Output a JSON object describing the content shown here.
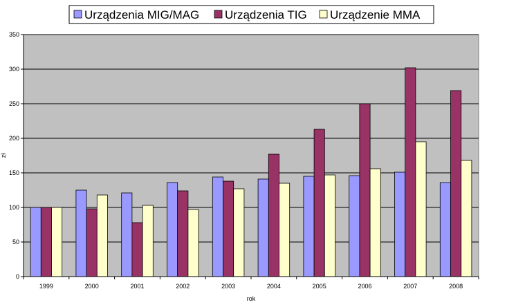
{
  "chart_data": {
    "type": "bar",
    "title": "",
    "xlabel": "rok",
    "ylabel": "zł",
    "ylim": [
      0,
      350
    ],
    "yticks": [
      0,
      50,
      100,
      150,
      200,
      250,
      300,
      350
    ],
    "grid": true,
    "legend_position": "top",
    "categories": [
      "1999",
      "2000",
      "2001",
      "2002",
      "2003",
      "2004",
      "2005",
      "2006",
      "2007",
      "2008"
    ],
    "series": [
      {
        "name": "Urządzenia MIG/MAG",
        "color": "#9999ff",
        "values": [
          100,
          125,
          121,
          136,
          144,
          141,
          145,
          146,
          151,
          136
        ]
      },
      {
        "name": "Urządzenia TIG",
        "color": "#993366",
        "values": [
          100,
          98,
          78,
          124,
          138,
          177,
          213,
          250,
          302,
          269
        ]
      },
      {
        "name": "Urządzenie MMA",
        "color": "#ffffcc",
        "values": [
          100,
          118,
          103,
          97,
          127,
          135,
          147,
          156,
          195,
          168
        ]
      }
    ],
    "colors": {
      "plot_background": "#c0c0c0",
      "gridline": "#000000",
      "bar_border": "#000000"
    }
  }
}
